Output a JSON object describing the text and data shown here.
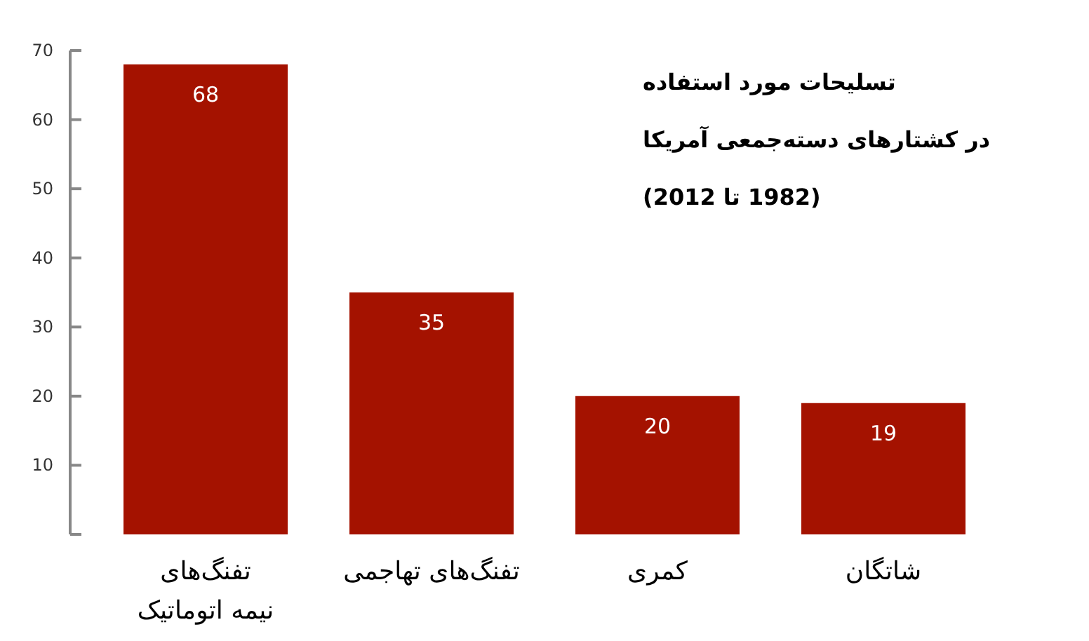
{
  "chart_data": {
    "type": "bar",
    "title": "تسلیحات مورد استفاده\nدر کشتارهای دسته‌جمعی آمریکا",
    "subtitle": "(1982 تا 2012)",
    "categories": [
      "تفنگ‌های\nنیمه اتوماتیک",
      "تفنگ‌های تهاجمی",
      "کمری",
      "شاتگان"
    ],
    "values": [
      68,
      35,
      20,
      19
    ],
    "color": "#a41200",
    "ylim": [
      0,
      70
    ],
    "yticks": [
      {
        "value": 0,
        "label": null
      },
      10,
      20,
      30,
      40,
      50,
      60,
      70
    ],
    "data_labels": true
  }
}
